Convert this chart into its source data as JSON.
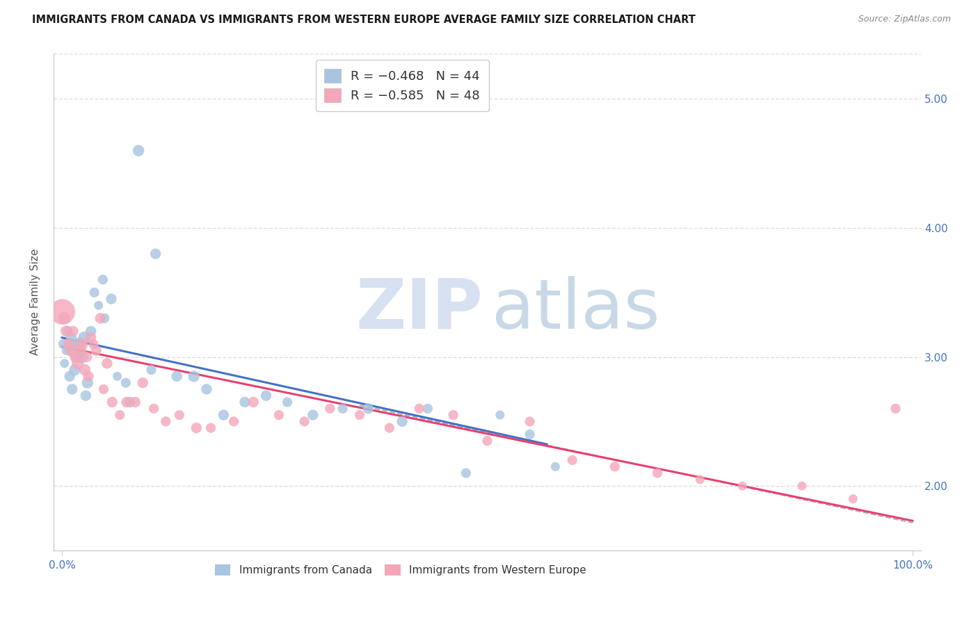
{
  "title": "IMMIGRANTS FROM CANADA VS IMMIGRANTS FROM WESTERN EUROPE AVERAGE FAMILY SIZE CORRELATION CHART",
  "source": "Source: ZipAtlas.com",
  "ylabel": "Average Family Size",
  "y_ticks_right": [
    2.0,
    3.0,
    4.0,
    5.0
  ],
  "canada": {
    "label": "Immigrants from Canada",
    "color_scatter": "#a8c4e0",
    "color_line": "#4472c4",
    "R": -0.468,
    "N": 44,
    "x": [
      0.15,
      0.3,
      0.5,
      0.7,
      0.9,
      1.1,
      1.3,
      1.5,
      1.7,
      2.0,
      2.3,
      2.6,
      3.0,
      3.4,
      3.8,
      4.3,
      5.0,
      5.8,
      6.5,
      7.5,
      9.0,
      11.0,
      13.5,
      15.5,
      17.0,
      19.0,
      21.5,
      24.0,
      26.5,
      29.5,
      33.0,
      36.0,
      40.0,
      43.0,
      47.5,
      51.5,
      55.0,
      58.0,
      1.0,
      1.2,
      2.8,
      4.8,
      8.0,
      10.5
    ],
    "y": [
      3.1,
      2.95,
      3.05,
      3.2,
      2.85,
      3.15,
      3.1,
      2.9,
      3.0,
      3.1,
      3.0,
      3.15,
      2.8,
      3.2,
      3.5,
      3.4,
      3.3,
      3.45,
      2.85,
      2.8,
      4.6,
      3.8,
      2.85,
      2.85,
      2.75,
      2.55,
      2.65,
      2.7,
      2.65,
      2.55,
      2.6,
      2.6,
      2.5,
      2.6,
      2.1,
      2.55,
      2.4,
      2.15,
      3.05,
      2.75,
      2.7,
      3.6,
      2.65,
      2.9
    ],
    "size": [
      30,
      25,
      25,
      30,
      35,
      35,
      35,
      40,
      45,
      50,
      50,
      45,
      40,
      35,
      30,
      25,
      30,
      35,
      25,
      30,
      40,
      35,
      35,
      40,
      35,
      35,
      35,
      35,
      30,
      35,
      30,
      35,
      35,
      30,
      30,
      25,
      30,
      25,
      40,
      35,
      35,
      30,
      35,
      30
    ]
  },
  "western_europe": {
    "label": "Immigrants from Western Europe",
    "color_scatter": "#f4a7b9",
    "color_line": "#e84070",
    "R": -0.585,
    "N": 48,
    "x": [
      0.05,
      0.25,
      0.5,
      0.8,
      1.05,
      1.3,
      1.6,
      1.85,
      2.1,
      2.35,
      2.7,
      2.9,
      3.1,
      3.4,
      3.7,
      4.0,
      4.5,
      4.9,
      5.3,
      5.9,
      6.8,
      7.6,
      8.6,
      9.5,
      10.8,
      12.2,
      13.8,
      15.8,
      17.5,
      20.2,
      22.5,
      25.5,
      28.5,
      31.5,
      35.0,
      38.5,
      42.0,
      46.0,
      50.0,
      55.0,
      60.0,
      65.0,
      70.0,
      75.0,
      80.0,
      87.0,
      93.0,
      98.0
    ],
    "y": [
      3.35,
      3.3,
      3.2,
      3.1,
      3.05,
      3.2,
      3.0,
      2.95,
      3.05,
      3.1,
      2.9,
      3.0,
      2.85,
      3.15,
      3.1,
      3.05,
      3.3,
      2.75,
      2.95,
      2.65,
      2.55,
      2.65,
      2.65,
      2.8,
      2.6,
      2.5,
      2.55,
      2.45,
      2.45,
      2.5,
      2.65,
      2.55,
      2.5,
      2.6,
      2.55,
      2.45,
      2.6,
      2.55,
      2.35,
      2.5,
      2.2,
      2.15,
      2.1,
      2.05,
      2.0,
      2.0,
      1.9,
      2.6
    ],
    "size": [
      200,
      45,
      40,
      40,
      40,
      35,
      40,
      45,
      50,
      45,
      40,
      35,
      35,
      35,
      30,
      35,
      35,
      30,
      35,
      35,
      30,
      35,
      35,
      35,
      30,
      30,
      30,
      35,
      30,
      30,
      35,
      30,
      30,
      30,
      30,
      30,
      30,
      30,
      30,
      30,
      30,
      30,
      30,
      25,
      25,
      25,
      25,
      30
    ]
  },
  "xlim": [
    -1,
    101
  ],
  "ylim": [
    1.5,
    5.35
  ],
  "grid_color": "#dddddd",
  "background_color": "#ffffff",
  "title_fontsize": 10.5,
  "tick_label_color": "#4472c4",
  "axis_label_color": "#555555",
  "legend_text_color": "#333333",
  "legend_value_color": "#4472c4"
}
